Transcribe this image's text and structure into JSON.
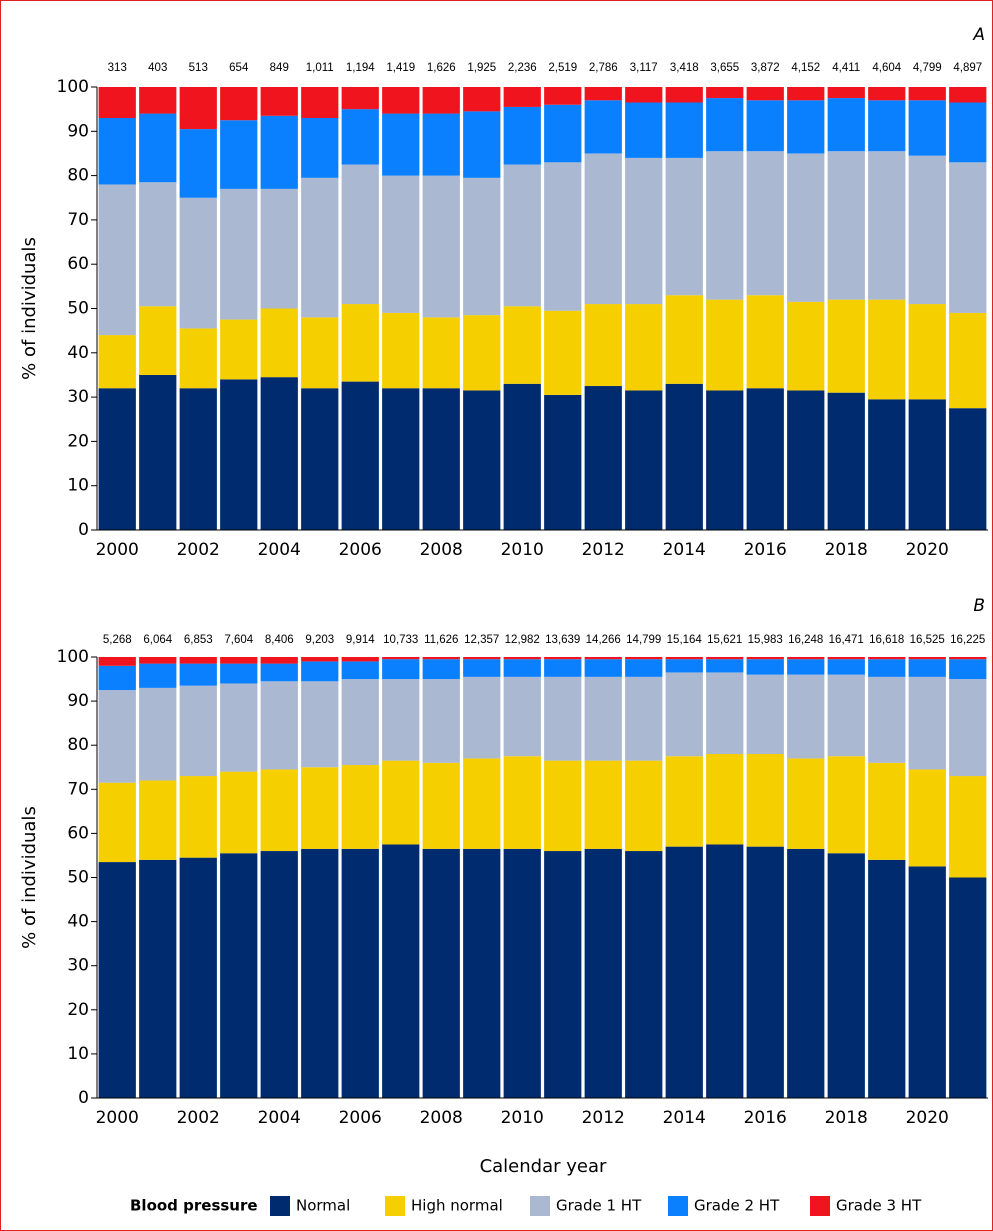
{
  "chart_data": [
    {
      "type": "stacked_bar",
      "title": "A",
      "ylabel": "% of individuals",
      "categories": [
        "2000",
        null,
        "2002",
        null,
        "2004",
        null,
        "2006",
        null,
        "2008",
        null,
        "2010",
        null,
        "2012",
        null,
        "2014",
        null,
        "2016",
        null,
        "2018",
        null,
        "2020",
        null
      ],
      "counts": [
        "313",
        "403",
        "513",
        "654",
        "849",
        "1,011",
        "1,194",
        "1,419",
        "1,626",
        "1,925",
        "2,236",
        "2,519",
        "2,786",
        "3,117",
        "3,418",
        "3,655",
        "3,872",
        "4,152",
        "4,411",
        "4,604",
        "4,799",
        "4,897"
      ],
      "ylim": [
        0,
        100
      ],
      "yticks": [
        0,
        10,
        20,
        30,
        40,
        50,
        60,
        70,
        80,
        90,
        100
      ],
      "series": [
        {
          "color": "#002b6f",
          "values": [
            32,
            35,
            32,
            34,
            34.5,
            32,
            33.5,
            32,
            32,
            31.5,
            33,
            30.5,
            32.5,
            31.5,
            33,
            31.5,
            32,
            31.5,
            31,
            29.5,
            29.5,
            27.5
          ]
        },
        {
          "color": "#f5cf00",
          "values": [
            12,
            15.5,
            13.5,
            13.5,
            15.5,
            16,
            17.5,
            17,
            16,
            17,
            17.5,
            19,
            18.5,
            19.5,
            20,
            20.5,
            21,
            20,
            21,
            22.5,
            21.5,
            21.5
          ]
        },
        {
          "color": "#aab8d2",
          "values": [
            34,
            28,
            29.5,
            29.5,
            27,
            31.5,
            31.5,
            31,
            32,
            31,
            32,
            33.5,
            34,
            33,
            31,
            33.5,
            32.5,
            33.5,
            33.5,
            33.5,
            33.5,
            34
          ]
        },
        {
          "color": "#0a80ff",
          "values": [
            15,
            15.5,
            15.5,
            15.5,
            16.5,
            13.5,
            12.5,
            14,
            14,
            15,
            13,
            13,
            12,
            12.5,
            12.5,
            12,
            11.5,
            12,
            12,
            11.5,
            12.5,
            13.5
          ]
        },
        {
          "color": "#f0141e",
          "values": [
            7,
            6,
            9.5,
            7.5,
            6.5,
            7,
            5,
            6,
            6,
            5.5,
            4.5,
            4,
            3,
            3.5,
            3.5,
            2.5,
            3,
            3,
            2.5,
            3,
            3,
            3.5
          ]
        }
      ]
    },
    {
      "type": "stacked_bar",
      "title": "B",
      "ylabel": "% of individuals",
      "xlabel": "Calendar year",
      "legend_title": "Blood pressure",
      "categories": [
        "2000",
        null,
        "2002",
        null,
        "2004",
        null,
        "2006",
        null,
        "2008",
        null,
        "2010",
        null,
        "2012",
        null,
        "2014",
        null,
        "2016",
        null,
        "2018",
        null,
        "2020",
        null
      ],
      "counts": [
        "5,268",
        "6,064",
        "6,853",
        "7,604",
        "8,406",
        "9,203",
        "9,914",
        "10,733",
        "11,626",
        "12,357",
        "12,982",
        "13,639",
        "14,266",
        "14,799",
        "15,164",
        "15,621",
        "15,983",
        "16,248",
        "16,471",
        "16,618",
        "16,525",
        "16,225"
      ],
      "ylim": [
        0,
        100
      ],
      "yticks": [
        0,
        10,
        20,
        30,
        40,
        50,
        60,
        70,
        80,
        90,
        100
      ],
      "series": [
        {
          "name": "Normal",
          "color": "#002b6f",
          "values": [
            53.5,
            54,
            54.5,
            55.5,
            56,
            56.5,
            56.5,
            57.5,
            56.5,
            56.5,
            56.5,
            56,
            56.5,
            56,
            57,
            57.5,
            57,
            56.5,
            55.5,
            54,
            52.5,
            50
          ]
        },
        {
          "name": "High normal",
          "color": "#f5cf00",
          "values": [
            18,
            18,
            18.5,
            18.5,
            18.5,
            18.5,
            19,
            19,
            19.5,
            20.5,
            21,
            20.5,
            20,
            20.5,
            20.5,
            20.5,
            21,
            20.5,
            22,
            22,
            22,
            23
          ]
        },
        {
          "name": "Grade 1 HT",
          "color": "#aab8d2",
          "values": [
            21,
            21,
            20.5,
            20,
            20,
            19.5,
            19.5,
            18.5,
            19,
            18.5,
            18,
            19,
            19,
            19,
            19,
            18.5,
            18,
            19,
            18.5,
            19.5,
            21,
            22
          ]
        },
        {
          "name": "Grade 2 HT",
          "color": "#0a80ff",
          "values": [
            5.5,
            5.5,
            5,
            4.5,
            4,
            4.5,
            4,
            4.5,
            4.5,
            4,
            4,
            4,
            4,
            4,
            3,
            3,
            3.5,
            3.5,
            3.5,
            4,
            4,
            4.5
          ]
        },
        {
          "name": "Grade 3 HT",
          "color": "#f0141e",
          "values": [
            2,
            1.5,
            1.5,
            1.5,
            1.5,
            1,
            1,
            0.5,
            0.5,
            0.5,
            0.5,
            0.5,
            0.5,
            0.5,
            0.5,
            0.5,
            0.5,
            0.5,
            0.5,
            0.5,
            0.5,
            0.5
          ]
        }
      ]
    }
  ]
}
